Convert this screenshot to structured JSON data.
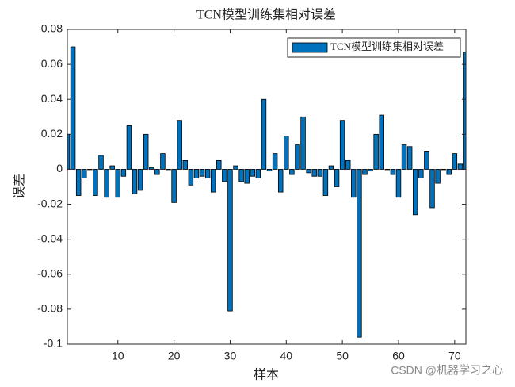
{
  "chart_data": {
    "type": "bar",
    "title": "TCN模型训练集相对误差",
    "xlabel": "样本",
    "ylabel": "误差",
    "series": [
      {
        "name": "TCN模型训练集相对误差",
        "color": "#0072bd",
        "values": [
          0.02,
          0.07,
          -0.015,
          -0.005,
          0,
          -0.015,
          0.008,
          -0.016,
          0.002,
          -0.016,
          -0.004,
          0.025,
          -0.014,
          -0.012,
          0.02,
          0.001,
          -0.003,
          0.009,
          0,
          -0.019,
          0.028,
          0.005,
          -0.009,
          -0.005,
          -0.004,
          -0.005,
          -0.013,
          0.005,
          -0.007,
          -0.081,
          0.002,
          -0.007,
          -0.008,
          -0.004,
          -0.005,
          0.04,
          -0.001,
          0.009,
          -0.013,
          0.019,
          -0.003,
          0.014,
          0.03,
          -0.002,
          -0.004,
          -0.004,
          -0.015,
          0.002,
          -0.01,
          0.028,
          0.005,
          -0.016,
          -0.096,
          -0.003,
          -0.001,
          0.02,
          0.031,
          0,
          -0.003,
          -0.016,
          0.014,
          0.013,
          -0.026,
          -0.005,
          0.01,
          -0.022,
          -0.008,
          0,
          -0.003,
          0.009,
          0.003,
          0.067
        ]
      }
    ],
    "xlim": [
      1,
      72
    ],
    "xticks": [
      10,
      20,
      30,
      40,
      50,
      60,
      70
    ],
    "ylim": [
      -0.1,
      0.08
    ],
    "yticks": [
      -0.1,
      -0.08,
      -0.06,
      -0.04,
      -0.02,
      0,
      0.02,
      0.04,
      0.06,
      0.08
    ],
    "legend": "northeast",
    "watermark": "CSDN @机器学习之心"
  }
}
